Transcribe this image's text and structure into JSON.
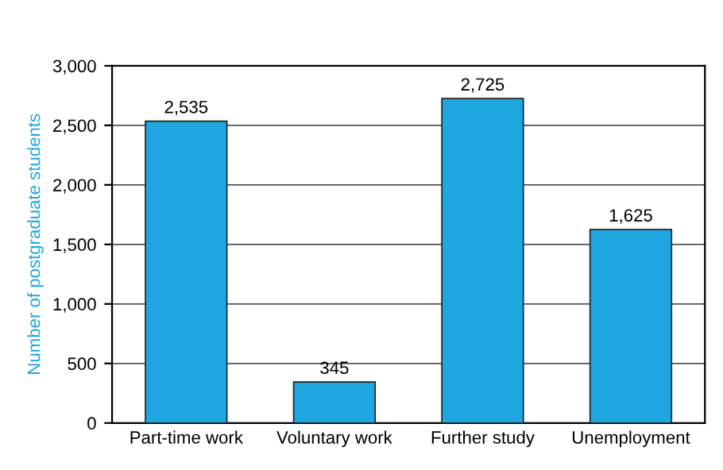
{
  "chart_data": {
    "type": "bar",
    "ylabel": "Number of postgraduate students",
    "categories": [
      "Part-time work",
      "Voluntary work",
      "Further study",
      "Unemployment"
    ],
    "values": [
      2535,
      345,
      2725,
      1625
    ],
    "value_labels": [
      "2,535",
      "345",
      "2,725",
      "1,625"
    ],
    "color": "#1ea6e0",
    "ylim": [
      0,
      3000
    ],
    "yticks": [
      {
        "value": 0,
        "label": "0"
      },
      {
        "value": 500,
        "label": "500"
      },
      {
        "value": 1000,
        "label": "1,000"
      },
      {
        "value": 1500,
        "label": "1,500"
      },
      {
        "value": 2000,
        "label": "2,000"
      },
      {
        "value": 2500,
        "label": "2,500"
      },
      {
        "value": 3000,
        "label": "3,000"
      }
    ],
    "grid": "y"
  }
}
